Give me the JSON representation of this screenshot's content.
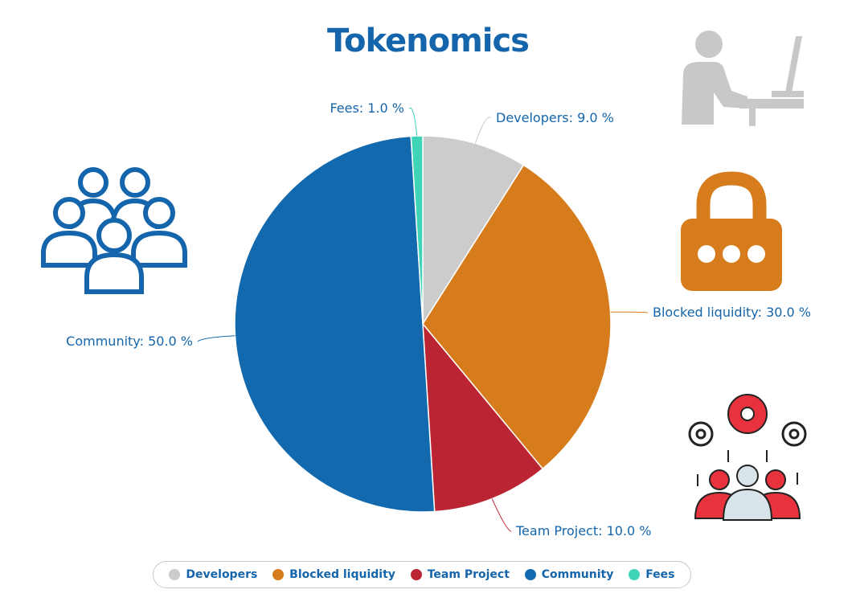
{
  "chart_data": {
    "type": "pie",
    "title": "Tokenomics",
    "slices": [
      {
        "label": "Developers",
        "value": 9.0,
        "color": "#cccccc",
        "data_label": "Developers: 9.0 %"
      },
      {
        "label": "Blocked liquidity",
        "value": 30.0,
        "color": "#d67c1c",
        "data_label": "Blocked liquidity: 30.0 %"
      },
      {
        "label": "Team Project",
        "value": 10.0,
        "color": "#bb2533",
        "data_label": "Team Project: 10.0 %"
      },
      {
        "label": "Community",
        "value": 50.0,
        "color": "#1269ae",
        "data_label": "Community: 50.0 %"
      },
      {
        "label": "Fees",
        "value": 1.0,
        "color": "#3fd4b8",
        "data_label": "Fees: 1.0 %"
      }
    ],
    "legend_position": "bottom"
  },
  "legend": {
    "items": [
      {
        "label": "Developers",
        "color": "#cccccc"
      },
      {
        "label": "Blocked liquidity",
        "color": "#d67c1c"
      },
      {
        "label": "Team Project",
        "color": "#bb2533"
      },
      {
        "label": "Community",
        "color": "#1269ae"
      },
      {
        "label": "Fees",
        "color": "#3fd4b8"
      }
    ]
  },
  "icons": {
    "community": "people-group-icon",
    "developer": "person-at-computer-icon",
    "liquidity": "padlock-icon",
    "team": "team-gears-icon"
  }
}
